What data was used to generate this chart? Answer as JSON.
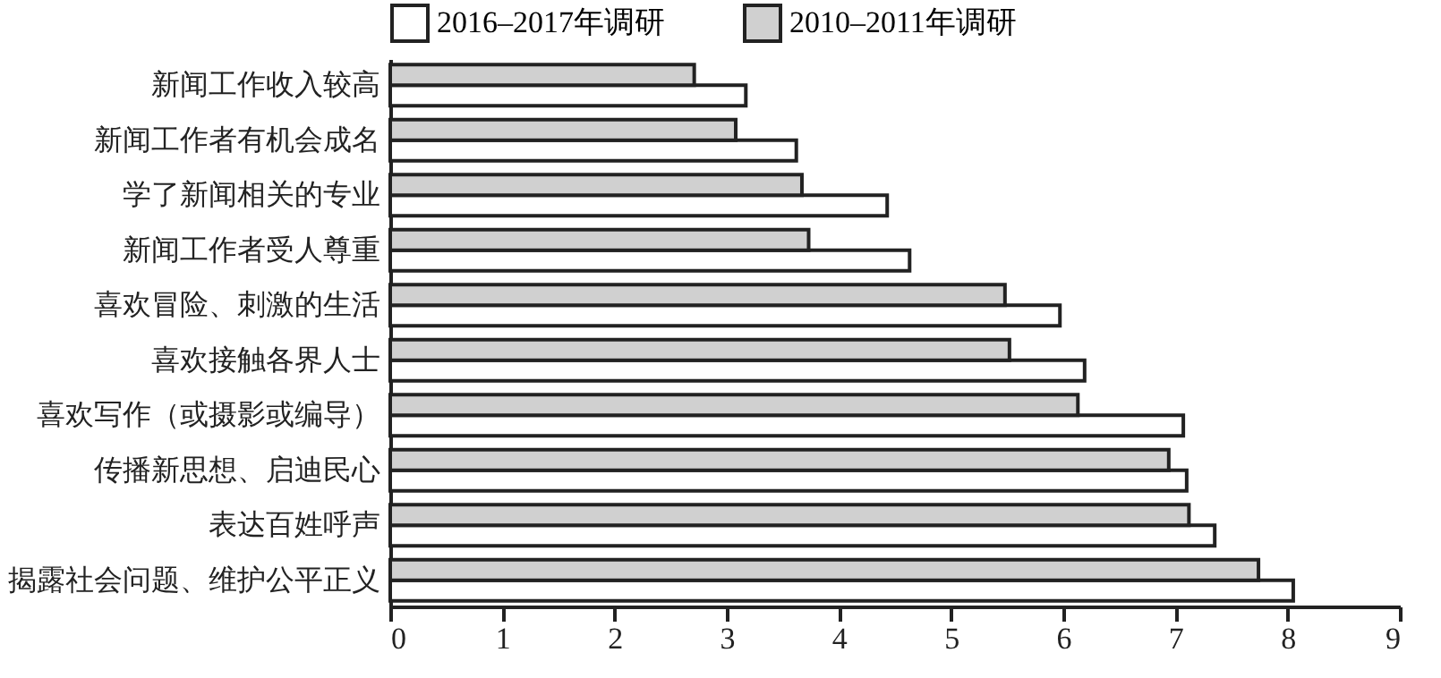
{
  "chart_data": {
    "type": "bar",
    "orientation": "horizontal",
    "categories": [
      "新闻工作收入较高",
      "新闻工作者有机会成名",
      "学了新闻相关的专业",
      "新闻工作者受人尊重",
      "喜欢冒险、刺激的生活",
      "喜欢接触各界人士",
      "喜欢写作（或摄影或编导）",
      "传播新思想、启迪民心",
      "表达百姓呼声",
      "揭露社会问题、维护公平正义"
    ],
    "series": [
      {
        "name": "2016–2017年调研",
        "color": "#ffffff",
        "values": [
          3.17,
          3.62,
          4.43,
          4.63,
          5.97,
          6.19,
          7.07,
          7.1,
          7.35,
          8.05
        ]
      },
      {
        "name": "2010–2011年调研",
        "color": "#d0d0d0",
        "values": [
          2.71,
          3.08,
          3.67,
          3.73,
          5.48,
          5.52,
          6.13,
          6.94,
          7.12,
          7.74
        ]
      }
    ],
    "xlim": [
      0,
      9
    ],
    "xticks": [
      0,
      1,
      2,
      3,
      4,
      5,
      6,
      7,
      8,
      9
    ],
    "grid": false,
    "legend": "top"
  }
}
